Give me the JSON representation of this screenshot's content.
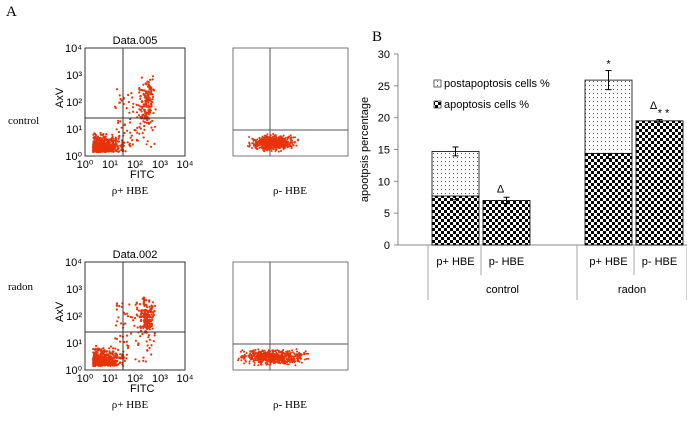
{
  "panel_label_a": "A",
  "panel_label_b": "B",
  "rows": [
    "control",
    "radon"
  ],
  "flow_plots": [
    {
      "title": "Data.005",
      "y_label": "AxV",
      "x_label": "FITC",
      "ticks": [
        "10⁰",
        "10¹",
        "10²",
        "10³",
        "10⁴"
      ],
      "captions": [
        "ρ+ HBE",
        "ρ- HBE"
      ]
    },
    {
      "title": "Data.002",
      "y_label": "AxV",
      "x_label": "FITC",
      "ticks": [
        "10⁰",
        "10¹",
        "10²",
        "10³",
        "10⁴"
      ],
      "captions": [
        "ρ+ HBE",
        "ρ- HBE"
      ]
    }
  ],
  "chart_data": {
    "type": "stacked_bar",
    "y_label": "apootpsis  percentage",
    "groups": [
      {
        "label": "control",
        "categories": [
          "p+ HBE",
          "p- HBE"
        ]
      },
      {
        "label": "radon",
        "categories": [
          "p+ HBE",
          "p- HBE"
        ]
      }
    ],
    "series": [
      {
        "name": "apoptosis cells %",
        "pattern": "checker",
        "color": "#000000",
        "values": [
          7.7,
          7.0,
          14.4,
          19.5
        ],
        "errors": [
          0.6,
          0.5,
          0.8,
          0.2
        ],
        "marks": [
          null,
          null,
          "*",
          "* *"
        ]
      },
      {
        "name": "postapoptosis cells %",
        "pattern": "dots",
        "color": "#000000",
        "values": [
          7.0,
          null,
          11.5,
          null
        ],
        "errors": [
          0.7,
          null,
          1.5,
          null
        ],
        "marks": [
          null,
          null,
          "*",
          null
        ]
      }
    ],
    "top_marks": [
      null,
      "Δ",
      null,
      "Δ"
    ],
    "ylim": [
      0,
      30
    ],
    "yticks": [
      0,
      5,
      10,
      15,
      20,
      25,
      30
    ],
    "legend": "upper-left"
  }
}
